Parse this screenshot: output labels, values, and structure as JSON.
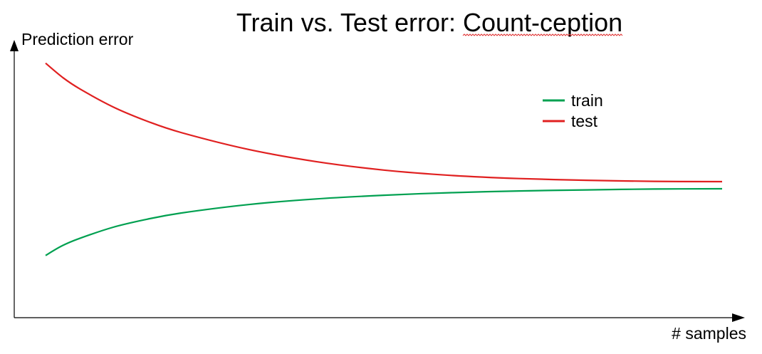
{
  "chart_data": {
    "type": "line",
    "title": "Train vs. Test error: Count-ception",
    "title_prefix": "Train vs. Test error: ",
    "title_underlined_word": "Count-ception",
    "xlabel": "# samples",
    "ylabel": "Prediction error",
    "grid": false,
    "axis_ticks": false,
    "legend_position": "top-right",
    "xlim": [
      0,
      10
    ],
    "ylim": [
      0,
      10
    ],
    "series": [
      {
        "name": "train",
        "color": "#00a050",
        "x": [
          0,
          0.25,
          0.5,
          1,
          1.5,
          2,
          3,
          4,
          5,
          6,
          7,
          8,
          9,
          10
        ],
        "y": [
          2.2,
          2.55,
          2.8,
          3.2,
          3.48,
          3.7,
          4.0,
          4.2,
          4.33,
          4.42,
          4.48,
          4.52,
          4.55,
          4.56
        ]
      },
      {
        "name": "test",
        "color": "#e02020",
        "x": [
          0,
          0.25,
          0.5,
          1,
          1.5,
          2,
          3,
          4,
          5,
          6,
          7,
          8,
          9,
          10
        ],
        "y": [
          9.0,
          8.5,
          8.1,
          7.45,
          6.95,
          6.55,
          5.95,
          5.52,
          5.22,
          5.03,
          4.92,
          4.86,
          4.82,
          4.81
        ]
      }
    ]
  }
}
